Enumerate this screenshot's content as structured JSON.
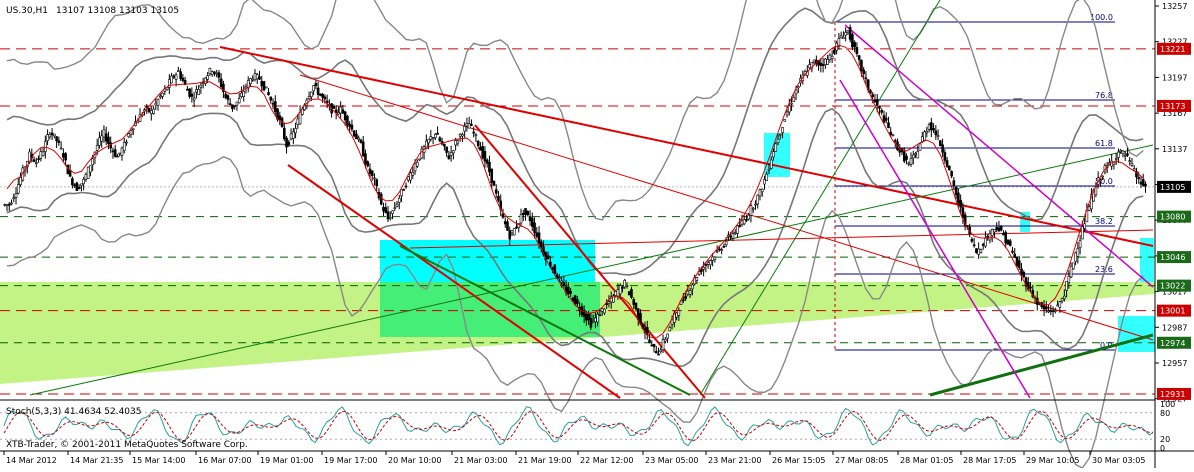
{
  "header": {
    "symbol": "US.30,H1",
    "ohlc": "13107 13108 13103 13105"
  },
  "indicator": {
    "label": "Stoch(5,3,3) 41.4634 52.4035",
    "levels": [
      80,
      20
    ]
  },
  "copyright": "XTB-Trader, © 2001-2011 MetaQuotes Software Corp.",
  "fib_labels": [
    "100.0",
    "76.8",
    "61.8",
    "50.0",
    "38.2",
    "23.6",
    "0.0"
  ],
  "colors": {
    "price_line": "#dd0000",
    "current_price_bg": "#000000",
    "level_bg": "#cc0000",
    "band_bg": "#1a6a1a",
    "band_line": "#006400",
    "bollinger": "#777777",
    "cyan_zone": "#00ffff",
    "green_zone": "#66ff66",
    "fib": "#000080",
    "channel_magenta": "#cc00cc"
  },
  "chart_data": {
    "type": "candlestick",
    "symbol": "US.30",
    "timeframe": "H1",
    "y_axis_ticks": [
      13257,
      13227,
      13197,
      13167,
      13137,
      13107,
      13077,
      13047,
      13017,
      12987,
      12957,
      12927
    ],
    "ylim": [
      12927,
      13257
    ],
    "price_labels": [
      {
        "value": 13221,
        "label": "13221",
        "style": "level"
      },
      {
        "value": 13173,
        "label": "13173",
        "style": "level"
      },
      {
        "value": 13105,
        "label": "13105",
        "style": "current"
      },
      {
        "value": 13080,
        "label": "13080",
        "style": "band"
      },
      {
        "value": 13046,
        "label": "13046",
        "style": "band"
      },
      {
        "value": 13022,
        "label": "13022",
        "style": "band"
      },
      {
        "value": 13001,
        "label": "13001",
        "style": "level"
      },
      {
        "value": 12974,
        "label": "12974",
        "style": "band"
      },
      {
        "value": 12931,
        "label": "12931",
        "style": "level"
      }
    ],
    "x_axis_labels": [
      "14 Mar 2012",
      "14 Mar 21:35",
      "15 Mar 14:00",
      "16 Mar 07:00",
      "19 Mar 01:00",
      "19 Mar 17:00",
      "20 Mar 10:00",
      "21 Mar 03:00",
      "21 Mar 19:00",
      "22 Mar 12:00",
      "23 Mar 05:00",
      "23 Mar 21:00",
      "26 Mar 15:05",
      "27 Mar 08:05",
      "28 Mar 01:05",
      "28 Mar 17:05",
      "29 Mar 10:05",
      "30 Mar 03:05"
    ],
    "stoch_axis_ticks": [
      100,
      80,
      20,
      0
    ],
    "price_path": [
      13090,
      13102,
      13118,
      13132,
      13126,
      13136,
      13152,
      13144,
      13132,
      13112,
      13104,
      13110,
      13124,
      13140,
      13150,
      13138,
      13130,
      13140,
      13154,
      13162,
      13170,
      13168,
      13178,
      13186,
      13196,
      13202,
      13190,
      13180,
      13188,
      13198,
      13204,
      13196,
      13180,
      13172,
      13178,
      13190,
      13198,
      13196,
      13186,
      13174,
      13160,
      13140,
      13150,
      13166,
      13180,
      13190,
      13182,
      13174,
      13168,
      13170,
      13160,
      13150,
      13140,
      13120,
      13110,
      13090,
      13078,
      13088,
      13100,
      13112,
      13124,
      13134,
      13144,
      13150,
      13140,
      13130,
      13142,
      13152,
      13158,
      13146,
      13132,
      13118,
      13098,
      13078,
      13064,
      13072,
      13084,
      13078,
      13064,
      13050,
      13040,
      13030,
      13020,
      13014,
      13006,
      12998,
      12990,
      12996,
      13004,
      13010,
      13018,
      13024,
      13012,
      12996,
      12984,
      12970,
      12966,
      12978,
      12992,
      13004,
      13014,
      13024,
      13034,
      13040,
      13046,
      13052,
      13060,
      13066,
      13072,
      13080,
      13090,
      13100,
      13116,
      13136,
      13152,
      13168,
      13182,
      13194,
      13204,
      13210,
      13208,
      13212,
      13220,
      13232,
      13236,
      13220,
      13204,
      13188,
      13176,
      13166,
      13154,
      13142,
      13132,
      13124,
      13132,
      13146,
      13158,
      13150,
      13136,
      13118,
      13098,
      13080,
      13064,
      13050,
      13058,
      13066,
      13072,
      13064,
      13054,
      13040,
      13028,
      13018,
      13008,
      13002,
      13000,
      13004,
      13016,
      13036,
      13056,
      13076,
      13096,
      13110,
      13120,
      13126,
      13134,
      13132,
      13122,
      13110,
      13105
    ]
  }
}
